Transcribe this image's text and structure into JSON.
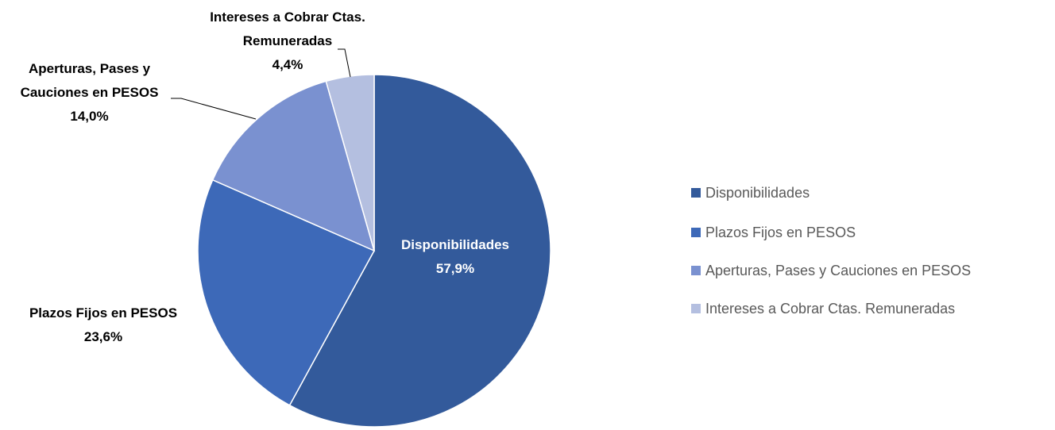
{
  "chart_data": {
    "type": "pie",
    "categories": [
      "Disponibilidades",
      "Plazos Fijos en PESOS",
      "Aperturas, Pases y Cauciones en PESOS",
      "Intereses a Cobrar Ctas. Remuneradas"
    ],
    "values": [
      57.9,
      23.6,
      14.0,
      4.4
    ],
    "value_labels": [
      "57,9%",
      "23,6%",
      "14,0%",
      "4,4%"
    ],
    "colors": [
      "#335a9b",
      "#3d69b8",
      "#7a91d0",
      "#b4bfe0"
    ],
    "legend": "right"
  }
}
